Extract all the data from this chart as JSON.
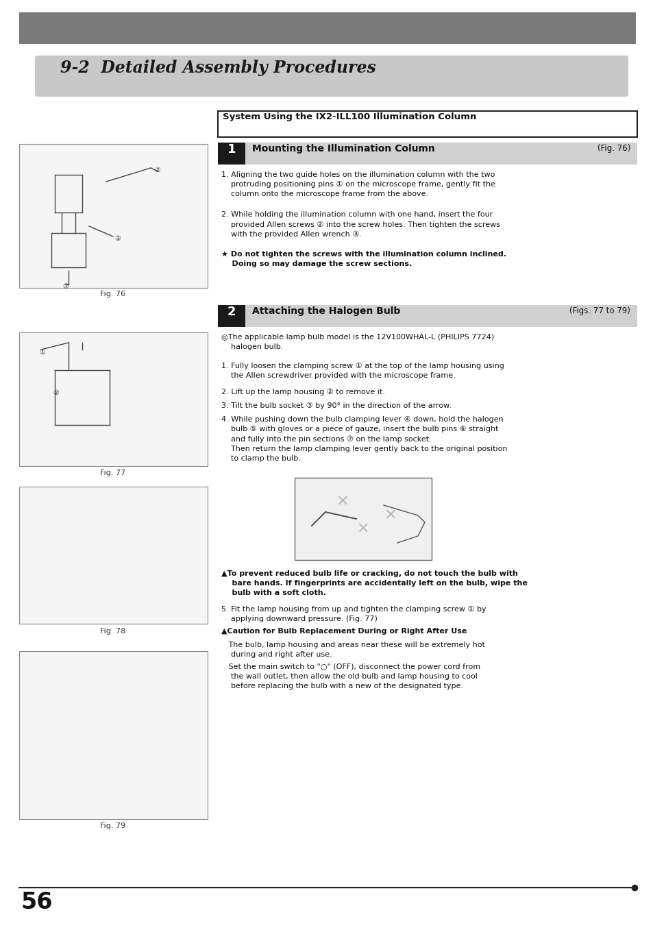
{
  "bg_color": "#ffffff",
  "page_width": 9.54,
  "page_height": 13.51,
  "section_title": "9-2  Detailed Assembly Procedures",
  "system_box_title": "System Using the IX2-ILL100 Illumination Column",
  "step1_title": "Mounting the Illumination Column",
  "step1_fig": "(Fig. 76)",
  "step1_text1": "1. Aligning the two guide holes on the illumination column with the two\n    protruding positioning pins ① on the microscope frame, gently fit the\n    column onto the microscope frame from the above.",
  "step1_text2": "2. While holding the illumination column with one hand, insert the four\n    provided Allen screws ② into the screw holes. Then tighten the screws\n    with the provided Allen wrench ③.",
  "step1_text3": "★ Do not tighten the screws with the illumination column inclined.\n    Doing so may damage the screw sections.",
  "step2_title": "Attaching the Halogen Bulb",
  "step2_fig": "(Figs. 77 to 79)",
  "step2_pre": "◎The applicable lamp bulb model is the 12V100WHAL-L (PHILIPS 7724)\n    halogen bulb.",
  "step2_text1": "1. Fully loosen the clamping screw ① at the top of the lamp housing using\n    the Allen screwdriver provided with the microscope frame.",
  "step2_text2": "2. Lift up the lamp housing ② to remove it.",
  "step2_text3": "3. Tilt the bulb socket ③ by 90° in the direction of the arrow.",
  "step2_text4": "4. While pushing down the bulb clamping lever ④ down, hold the halogen\n    bulb ⑤ with gloves or a piece of gauze, insert the bulb pins ⑥ straight\n    and fully into the pin sections ⑦ on the lamp socket.\n    Then return the lamp clamping lever gently back to the original position\n    to clamp the bulb.",
  "step2_warning": "▲To prevent reduced bulb life or cracking, do not touch the bulb with\n    bare hands. If fingerprints are accidentally left on the bulb, wipe the\n    bulb with a soft cloth.",
  "step2_text5": "5. Fit the lamp housing from up and tighten the clamping screw ① by\n    applying downward pressure. (Fig. 77)",
  "step2_caution_title": "▲Caution for Bulb Replacement During or Right After Use",
  "step2_caution1": "   The bulb, lamp housing and areas near these will be extremely hot\n    during and right after use.",
  "step2_caution2": "   Set the main switch to \"○\" (OFF), disconnect the power cord from\n    the wall outlet, then allow the old bulb and lamp housing to cool\n    before replacing the bulb with a new of the designated type.",
  "fig76_label": "Fig. 76",
  "fig77_label": "Fig. 77",
  "fig78_label": "Fig. 78",
  "fig79_label": "Fig. 79",
  "page_number": "56"
}
